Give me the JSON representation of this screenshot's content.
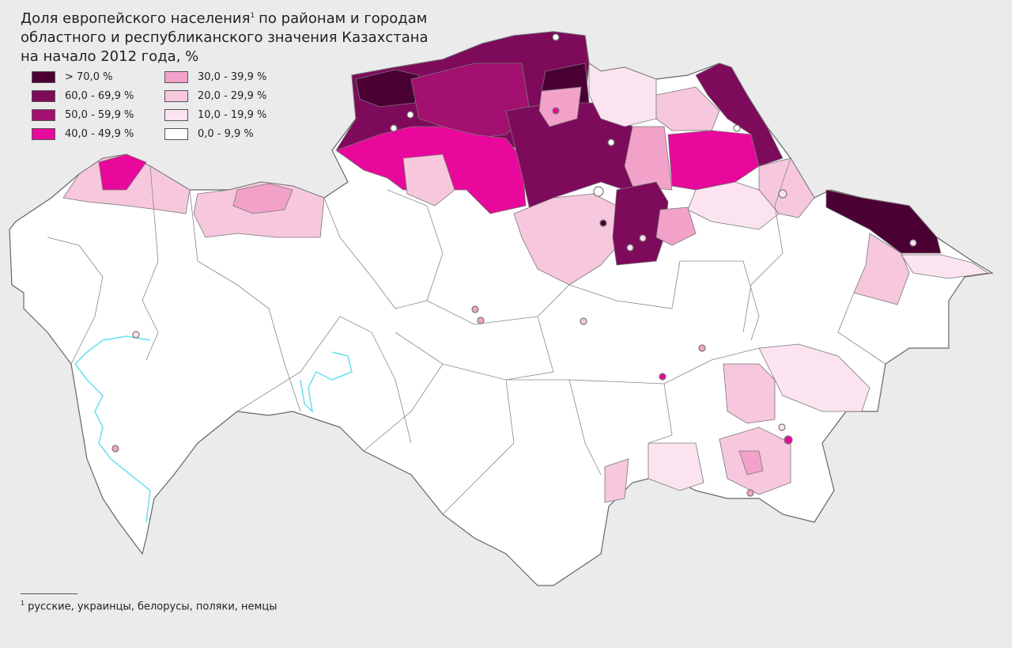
{
  "title": {
    "line1": "Доля европейского населения",
    "superscript": "1",
    "line1_rest": "по районам и городам",
    "line2": "областного и республиканского значения Казахстана",
    "line3": "на начало 2012 года, %"
  },
  "legend": [
    {
      "label": "> 70,0 %",
      "color": "#4b0034"
    },
    {
      "label": "60,0 - 69,9 %",
      "color": "#7e0a5b"
    },
    {
      "label": "50,0 - 59,9 %",
      "color": "#a3106f"
    },
    {
      "label": "40,0 - 49,9 %",
      "color": "#e8089b"
    },
    {
      "label": "30,0 - 39,9 %",
      "color": "#f2a2c9"
    },
    {
      "label": "20,0 - 29,9 %",
      "color": "#f7c7dd"
    },
    {
      "label": "10,0 - 19,9 %",
      "color": "#fbe4ef"
    },
    {
      "label": "0,0 - 9,9 %",
      "color": "#ffffff"
    }
  ],
  "footnote": {
    "marker": "1",
    "text": "русские, украинцы, белорусы, поляки, немцы"
  }
}
